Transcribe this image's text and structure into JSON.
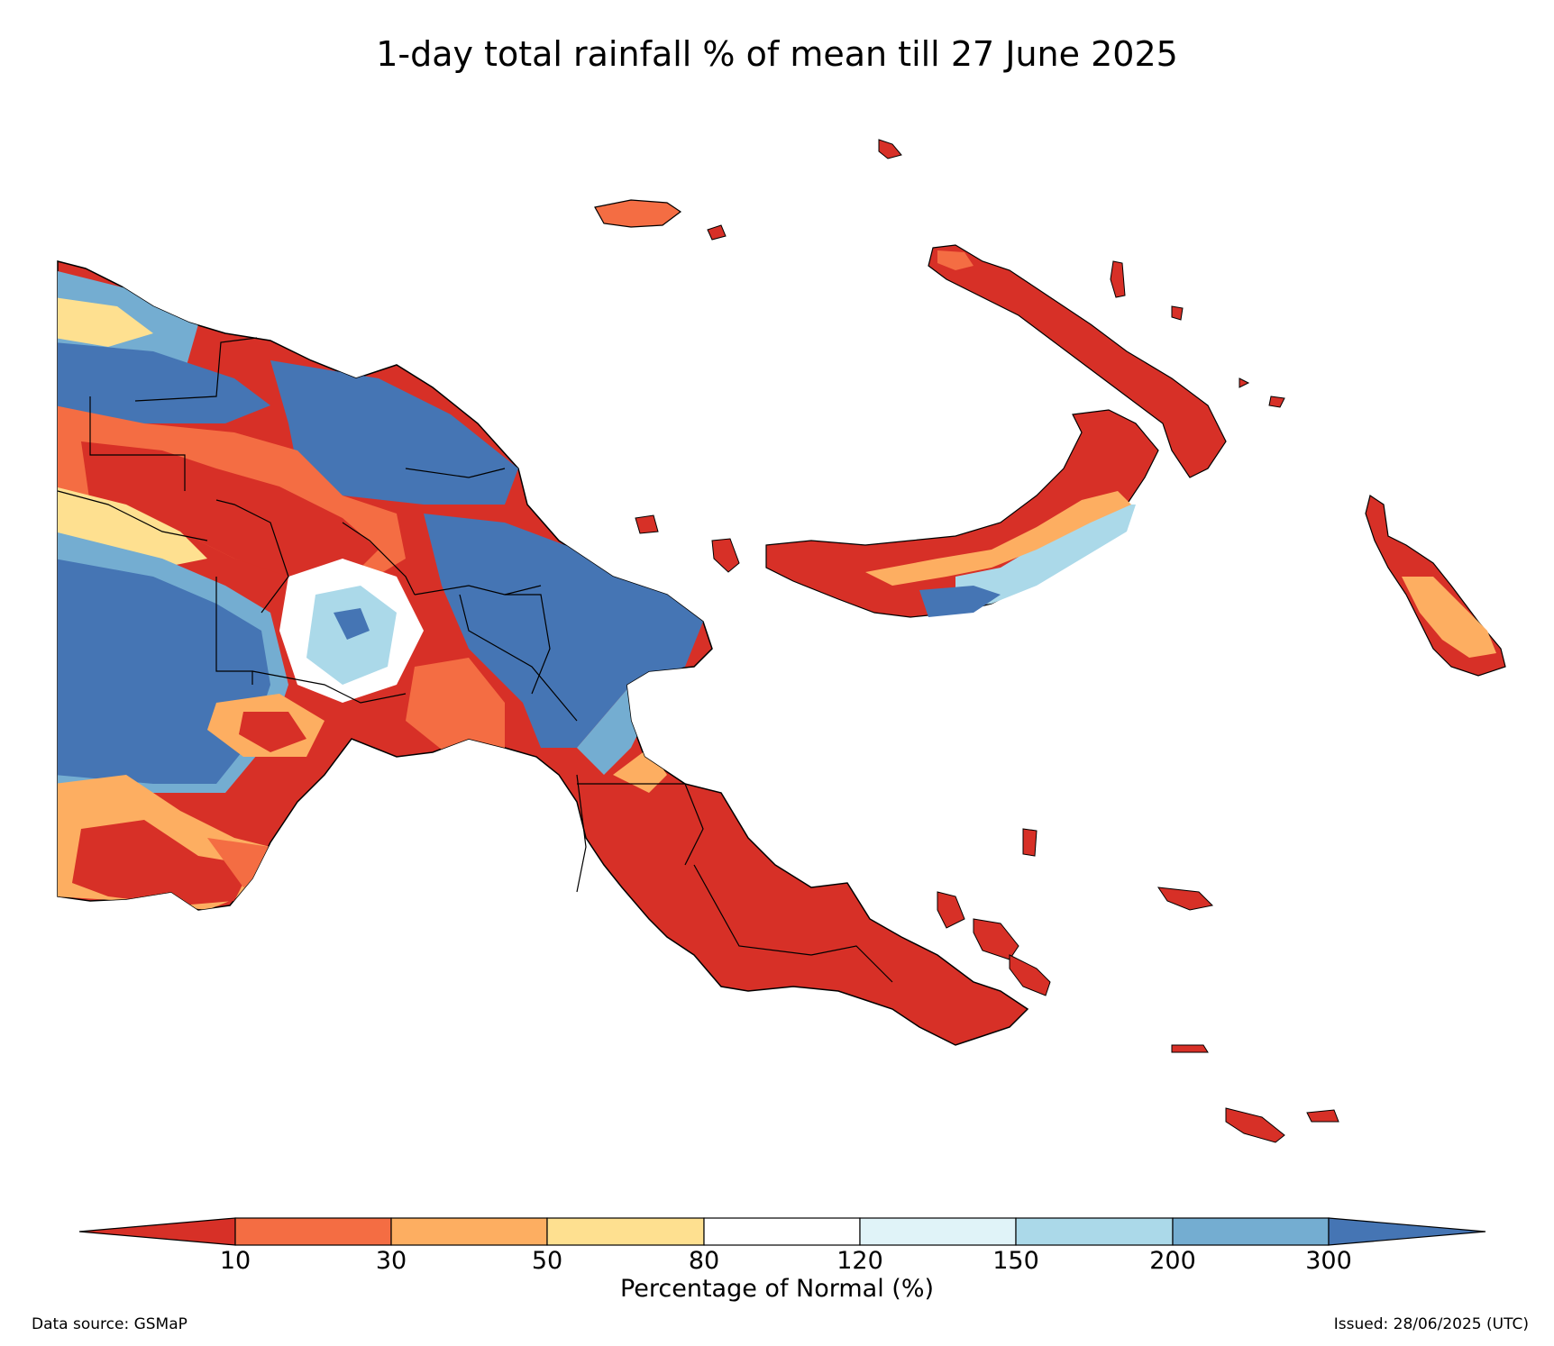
{
  "title": "1-day total rainfall % of mean till 27 June 2025",
  "colorbar": {
    "label": "Percentage of Normal (%)",
    "ticks": [
      "10",
      "30",
      "50",
      "80",
      "120",
      "150",
      "200",
      "300"
    ],
    "bins": [
      {
        "range": "<10",
        "color": "#d73027"
      },
      {
        "range": "10-30",
        "color": "#f46d43"
      },
      {
        "range": "30-50",
        "color": "#fdae61"
      },
      {
        "range": "50-80",
        "color": "#fee090"
      },
      {
        "range": "80-120",
        "color": "#ffffff"
      },
      {
        "range": "120-150",
        "color": "#e0f3f8"
      },
      {
        "range": "150-200",
        "color": "#abd9e9"
      },
      {
        "range": "200-300",
        "color": "#74add1"
      },
      {
        "range": ">300",
        "color": "#4575b4"
      }
    ]
  },
  "footer": {
    "source": "Data source: GSMaP",
    "issued": "Issued: 28/06/2025 (UTC)"
  }
}
